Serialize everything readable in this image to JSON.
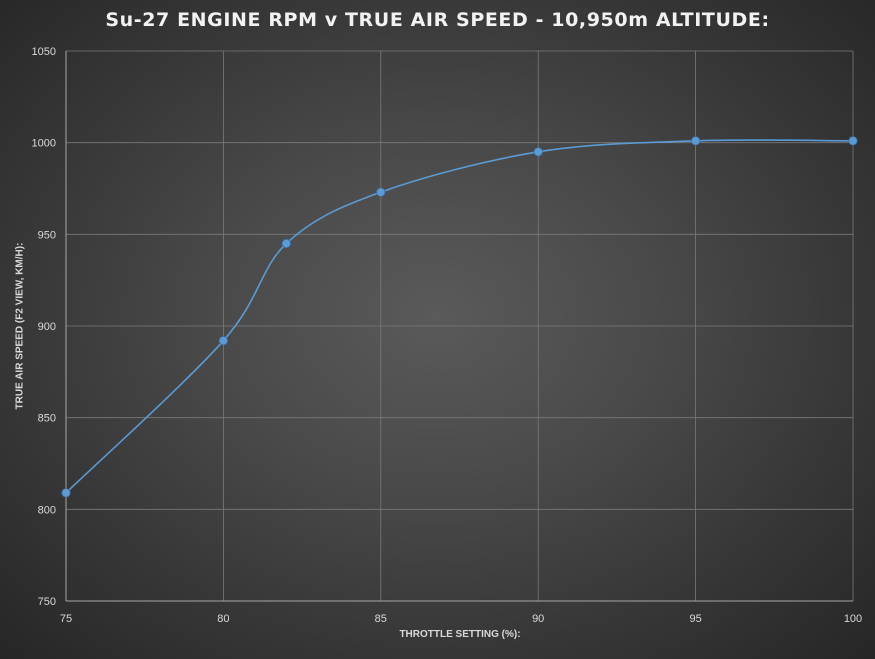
{
  "chart_data": {
    "type": "line",
    "title": "Su-27 ENGINE RPM v TRUE AIR SPEED - 10,950m ALTITUDE:",
    "xlabel": "THROTTLE SETTING (%):",
    "ylabel": "TRUE AIR SPEED (F2 VIEW, KM/H):",
    "xlim": [
      75,
      100
    ],
    "ylim": [
      750,
      1050
    ],
    "x_ticks": [
      75,
      80,
      85,
      90,
      95,
      100
    ],
    "y_ticks": [
      750,
      800,
      850,
      900,
      950,
      1000,
      1050
    ],
    "grid": true,
    "legend": "none",
    "smooth": true,
    "series": [
      {
        "color": "#5b9bd5",
        "points": [
          {
            "x": 75,
            "y": 809
          },
          {
            "x": 80,
            "y": 892
          },
          {
            "x": 82,
            "y": 945
          },
          {
            "x": 85,
            "y": 973
          },
          {
            "x": 90,
            "y": 995
          },
          {
            "x": 95,
            "y": 1001
          },
          {
            "x": 100,
            "y": 1001
          }
        ]
      }
    ]
  }
}
